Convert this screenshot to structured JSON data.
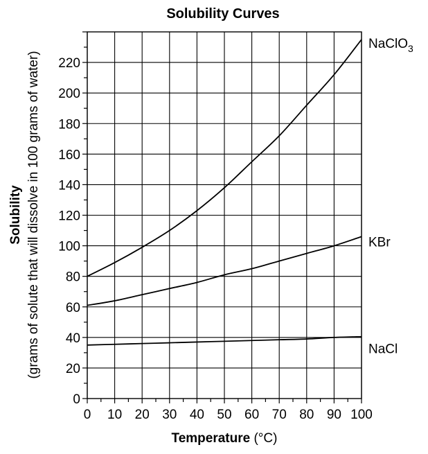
{
  "chart_data": {
    "type": "line",
    "title": "Solubility Curves",
    "xlabel_bold": "Temperature",
    "xlabel_rest": " (°C)",
    "ylabel_bold": "Solubility",
    "ylabel_sub": "(grams of solute that will dissolve in 100 grams of water)",
    "xlim": [
      0,
      100
    ],
    "ylim": [
      0,
      240
    ],
    "xticks": [
      0,
      10,
      20,
      30,
      40,
      50,
      60,
      70,
      80,
      90,
      100
    ],
    "yticks": [
      0,
      20,
      40,
      60,
      80,
      100,
      120,
      140,
      160,
      180,
      200,
      220
    ],
    "grid": true,
    "x": [
      0,
      10,
      20,
      30,
      40,
      50,
      60,
      70,
      80,
      90,
      100
    ],
    "series": [
      {
        "name": "NaClO",
        "subscript": "3",
        "values": [
          80,
          89,
          99,
          110,
          123,
          138,
          155,
          172,
          192,
          212,
          235
        ]
      },
      {
        "name": "KBr",
        "subscript": "",
        "values": [
          61,
          64,
          68,
          72,
          76,
          81,
          85,
          90,
          95,
          100,
          106
        ]
      },
      {
        "name": "NaCl",
        "subscript": "",
        "values": [
          35,
          35.5,
          36,
          36.5,
          37,
          37.5,
          38,
          38.5,
          39,
          40,
          40.5
        ]
      }
    ]
  }
}
